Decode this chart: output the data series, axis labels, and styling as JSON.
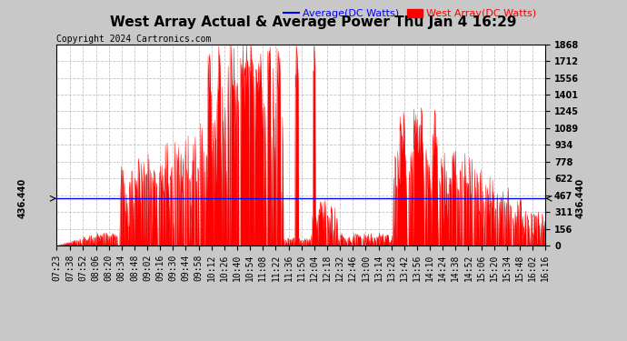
{
  "title": "West Array Actual & Average Power Thu Jan 4 16:29",
  "copyright": "Copyright 2024 Cartronics.com",
  "legend_avg": "Average(DC Watts)",
  "legend_west": "West Array(DC Watts)",
  "avg_color": "#0000ff",
  "west_color": "#ff0000",
  "ymin": 0.0,
  "ymax": 1867.6,
  "yticks": [
    0.0,
    155.6,
    311.3,
    466.9,
    622.5,
    778.2,
    933.8,
    1089.4,
    1245.1,
    1400.7,
    1556.3,
    1712.0,
    1867.6
  ],
  "avg_line_value": 436.44,
  "avg_line_label": "436.440",
  "bg_color": "#c8c8c8",
  "plot_bg_color": "#ffffff",
  "grid_color": "#aaaaaa",
  "title_fontsize": 11,
  "copyright_fontsize": 7,
  "legend_fontsize": 8,
  "tick_fontsize": 7,
  "xstart": "07:23",
  "xend": "16:16",
  "xtick_labels": [
    "07:23",
    "07:38",
    "07:52",
    "08:06",
    "08:20",
    "08:34",
    "08:48",
    "09:02",
    "09:16",
    "09:30",
    "09:44",
    "09:58",
    "10:12",
    "10:26",
    "10:40",
    "10:54",
    "11:08",
    "11:22",
    "11:36",
    "11:50",
    "12:04",
    "12:18",
    "12:32",
    "12:46",
    "13:00",
    "13:14",
    "13:28",
    "13:42",
    "13:56",
    "14:10",
    "14:24",
    "14:38",
    "14:52",
    "15:06",
    "15:20",
    "15:34",
    "15:48",
    "16:02",
    "16:16"
  ]
}
